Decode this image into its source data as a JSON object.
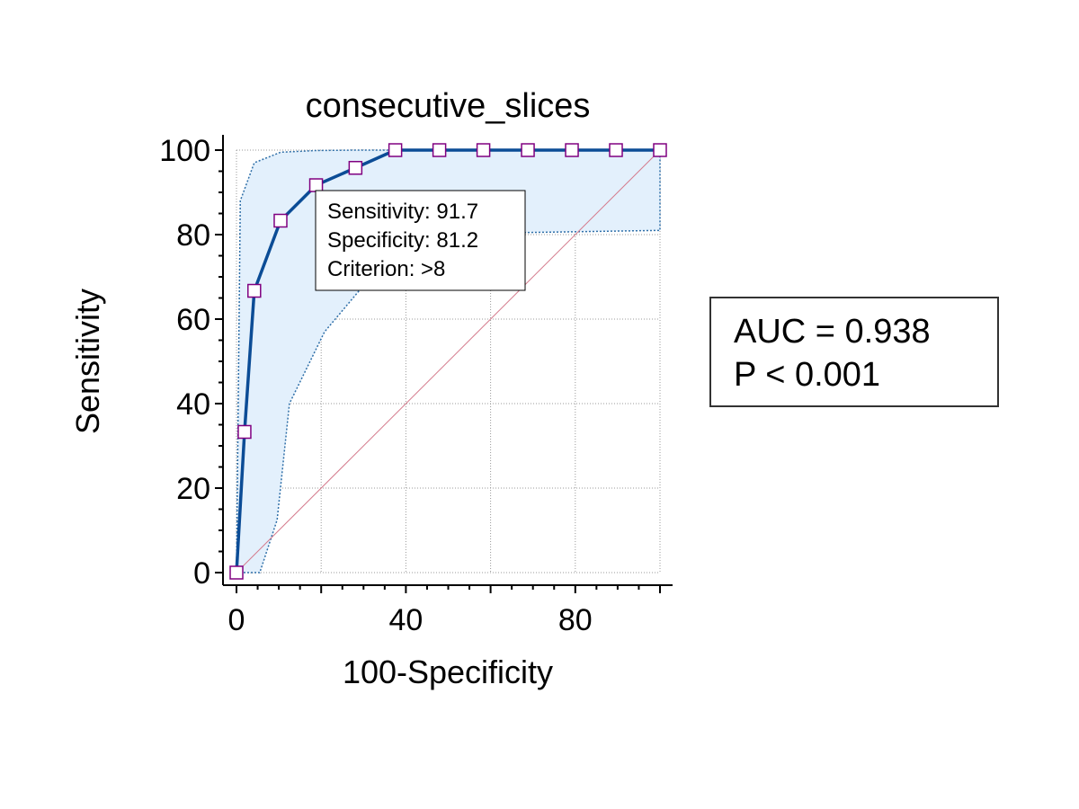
{
  "chart_data": {
    "type": "line",
    "title": "consecutive_slices",
    "xlabel": "100-Specificity",
    "ylabel": "Sensitivity",
    "xlim": [
      0,
      100
    ],
    "ylim": [
      0,
      100
    ],
    "x_ticks": [
      "0",
      "40",
      "80"
    ],
    "y_ticks": [
      "0",
      "20",
      "40",
      "60",
      "80",
      "100"
    ],
    "grid": true,
    "series": [
      {
        "role": "roc_curve",
        "color": "#0b4c96",
        "marker": "square",
        "marker_edge_color": "#800080",
        "x": [
          0,
          1.9,
          4.2,
          10.4,
          18.8,
          28.1,
          37.5,
          47.9,
          58.3,
          68.8,
          79.2,
          89.6,
          100
        ],
        "y": [
          0,
          33.3,
          66.7,
          83.3,
          91.7,
          95.8,
          100,
          100,
          100,
          100,
          100,
          100,
          100
        ]
      },
      {
        "role": "ci_upper",
        "color": "#2f6fa8",
        "x": [
          0,
          0.9,
          4.2,
          10.4,
          18.8,
          28.1,
          37.5,
          100
        ],
        "y": [
          0,
          88,
          97,
          99.5,
          99.9,
          100,
          100,
          100
        ]
      },
      {
        "role": "ci_lower",
        "color": "#2f6fa8",
        "x": [
          0,
          5.5,
          9.6,
          12.5,
          20.8,
          29.2,
          37.5,
          100,
          100
        ],
        "y": [
          0,
          0,
          12.5,
          40,
          57,
          67,
          80,
          81,
          100
        ]
      },
      {
        "role": "reference_line",
        "color": "#d47a8c",
        "x": [
          0,
          100
        ],
        "y": [
          0,
          100
        ]
      }
    ],
    "ci_fill_color": "#e3f0fc",
    "annotation": {
      "lines": [
        "Sensitivity: 91.7",
        "Specificity: 81.2",
        "Criterion: >8"
      ],
      "anchor": {
        "x": 18.8,
        "y": 91.7
      }
    },
    "stats_box": {
      "lines": [
        "AUC = 0.938",
        "P < 0.001"
      ]
    }
  }
}
